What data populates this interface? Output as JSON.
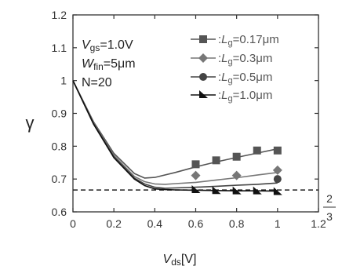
{
  "chart_data": {
    "type": "line",
    "xlabel": {
      "main": "V",
      "sub": "ds",
      "unit": "[V]"
    },
    "ylabel": "γ",
    "xlim": [
      0,
      1.2
    ],
    "ylim": [
      0.6,
      1.2
    ],
    "xticks": [
      "0",
      "0.2",
      "0.4",
      "0.6",
      "0.8",
      "1",
      "1.2"
    ],
    "yticks": [
      "0.6",
      "0.7",
      "0.8",
      "0.9",
      "1",
      "1.1",
      "1.2"
    ],
    "annotations": {
      "vgs": {
        "main": "V",
        "sub": "gs",
        "rest": "=1.0V"
      },
      "wfin": {
        "main": "W",
        "sub": "fin",
        "rest": "=5μm"
      },
      "n": "N=20"
    },
    "reference_line": {
      "y": 0.6667,
      "label_num": "2",
      "label_den": "3"
    },
    "series": [
      {
        "name": "L_g=0.17μm",
        "legend": {
          "prefix": ":",
          "main": "L",
          "sub": "g",
          "rest": "=0.17μm"
        },
        "marker": "square",
        "color": "#555555",
        "points_x": [
          0.6,
          0.7,
          0.8,
          0.9,
          1.0
        ],
        "points_y": [
          0.745,
          0.757,
          0.768,
          0.787,
          0.787
        ],
        "curve_x": [
          0,
          0.1,
          0.2,
          0.3,
          0.35,
          0.4,
          0.5,
          0.6,
          0.7,
          0.8,
          0.9,
          1.0
        ],
        "curve_y": [
          1.0,
          0.875,
          0.778,
          0.717,
          0.703,
          0.705,
          0.72,
          0.737,
          0.752,
          0.766,
          0.779,
          0.792
        ]
      },
      {
        "name": "L_g=0.3μm",
        "legend": {
          "prefix": ":",
          "main": "L",
          "sub": "g",
          "rest": "=0.3μm"
        },
        "marker": "diamond",
        "color": "#777777",
        "points_x": [
          0.6,
          0.8,
          1.0
        ],
        "points_y": [
          0.711,
          0.711,
          0.727
        ],
        "curve_x": [
          0,
          0.1,
          0.2,
          0.3,
          0.35,
          0.4,
          0.45,
          0.5,
          0.6,
          0.7,
          0.8,
          0.9,
          1.0
        ],
        "curve_y": [
          1.0,
          0.872,
          0.772,
          0.708,
          0.692,
          0.685,
          0.684,
          0.686,
          0.69,
          0.697,
          0.704,
          0.712,
          0.72
        ]
      },
      {
        "name": "L_g=0.5μm",
        "legend": {
          "prefix": ":",
          "main": "L",
          "sub": "g",
          "rest": "=0.5μm"
        },
        "marker": "circle",
        "color": "#444444",
        "points_x": [
          1.0
        ],
        "points_y": [
          0.7
        ],
        "curve_x": [
          0,
          0.1,
          0.2,
          0.3,
          0.35,
          0.4,
          0.45,
          0.5,
          0.6,
          0.7,
          0.8,
          0.9,
          1.0
        ],
        "curve_y": [
          1.0,
          0.87,
          0.768,
          0.703,
          0.685,
          0.675,
          0.672,
          0.673,
          0.675,
          0.678,
          0.681,
          0.684,
          0.688
        ]
      },
      {
        "name": "L_g=1.0μm",
        "legend": {
          "prefix": ":",
          "main": "L",
          "sub": "g",
          "rest": "=1.0μm"
        },
        "marker": "flag",
        "color": "#111111",
        "points_x": [
          0.6,
          0.7,
          0.8,
          0.9,
          1.0
        ],
        "points_y": [
          0.667,
          0.664,
          0.663,
          0.663,
          0.661
        ],
        "curve_x": [
          0,
          0.1,
          0.2,
          0.3,
          0.35,
          0.4,
          0.45,
          0.5,
          0.6,
          0.7,
          0.8,
          0.9,
          1.0
        ],
        "curve_y": [
          1.0,
          0.868,
          0.765,
          0.7,
          0.68,
          0.67,
          0.668,
          0.667,
          0.666,
          0.665,
          0.664,
          0.664,
          0.663
        ]
      }
    ]
  }
}
